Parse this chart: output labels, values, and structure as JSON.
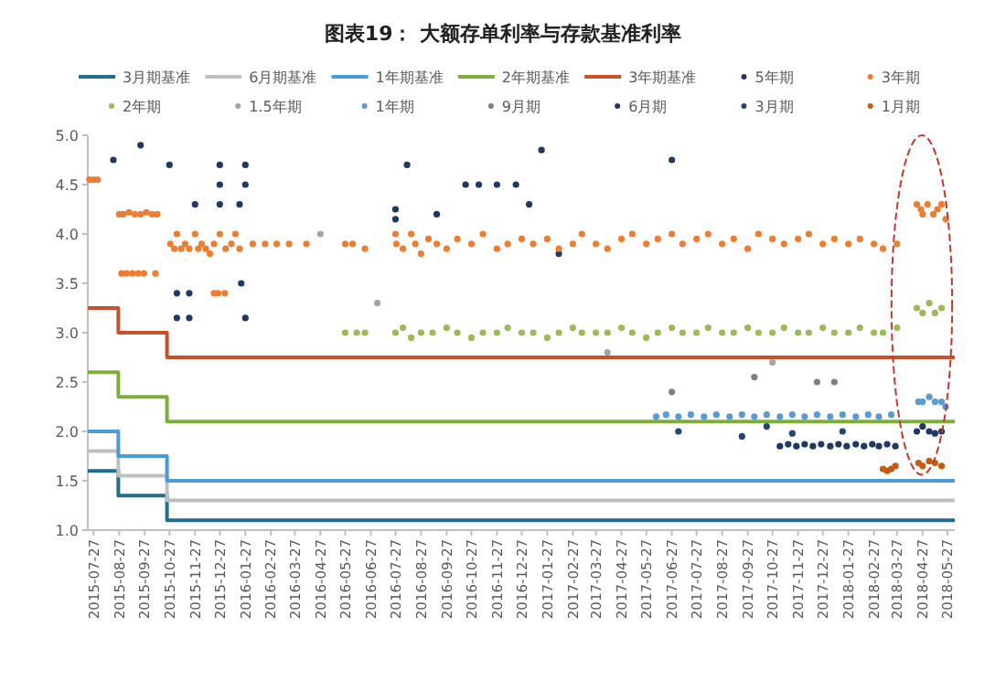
{
  "chart_data": {
    "type": "scatter",
    "title": "图表19：  大额存单利率与存款基准利率",
    "legend": "top",
    "marker": "circle",
    "xlim": [
      "2015-07-20",
      "2018-06-05"
    ],
    "xticks": [
      "2015-07-27",
      "2015-08-27",
      "2015-09-27",
      "2015-10-27",
      "2015-11-27",
      "2015-12-27",
      "2016-01-27",
      "2016-02-27",
      "2016-03-27",
      "2016-04-27",
      "2016-05-27",
      "2016-06-27",
      "2016-07-27",
      "2016-08-27",
      "2016-09-27",
      "2016-10-27",
      "2016-11-27",
      "2016-12-27",
      "2017-01-27",
      "2017-02-27",
      "2017-03-27",
      "2017-04-27",
      "2017-05-27",
      "2017-06-27",
      "2017-07-27",
      "2017-08-27",
      "2017-09-27",
      "2017-10-27",
      "2017-11-27",
      "2017-12-27",
      "2018-01-27",
      "2018-02-27",
      "2018-03-27",
      "2018-04-27",
      "2018-05-27"
    ],
    "ylim": [
      1,
      5
    ],
    "yticks": [
      {
        "value": 1,
        "label": "1.0"
      },
      {
        "value": 1.5,
        "label": "1.5"
      },
      {
        "value": 2,
        "label": "2.0"
      },
      {
        "value": 2.5,
        "label": "2.5"
      },
      {
        "value": 3,
        "label": "3.0"
      },
      {
        "value": 3.5,
        "label": "3.5"
      },
      {
        "value": 4,
        "label": "4.0"
      },
      {
        "value": 4.5,
        "label": "4.5"
      },
      {
        "value": 5,
        "label": "5.0"
      }
    ],
    "series": [
      {
        "name": "3月期基准",
        "type": "step",
        "marker": "none",
        "color": "#1f6e8c",
        "x": [
          "2015-07-20",
          "2015-08-26",
          "2015-10-24",
          "2018-06-05"
        ],
        "values": [
          1.6,
          1.35,
          1.1,
          1.1
        ]
      },
      {
        "name": "6月期基准",
        "type": "step",
        "marker": "none",
        "color": "#bfbfbf",
        "x": [
          "2015-07-20",
          "2015-08-26",
          "2015-10-24",
          "2018-06-05"
        ],
        "values": [
          1.8,
          1.55,
          1.3,
          1.3
        ]
      },
      {
        "name": "1年期基准",
        "type": "step",
        "marker": "none",
        "color": "#4a9bd6",
        "x": [
          "2015-07-20",
          "2015-08-26",
          "2015-10-24",
          "2018-06-05"
        ],
        "values": [
          2,
          1.75,
          1.5,
          1.5
        ]
      },
      {
        "name": "2年期基准",
        "type": "step",
        "marker": "none",
        "color": "#7fad3a",
        "x": [
          "2015-07-20",
          "2015-08-26",
          "2015-10-24",
          "2018-06-05"
        ],
        "values": [
          2.6,
          2.35,
          2.1,
          2.1
        ]
      },
      {
        "name": "3年期基准",
        "type": "step",
        "marker": "none",
        "color": "#c8502a",
        "x": [
          "2015-07-20",
          "2015-08-26",
          "2015-10-24",
          "2018-06-05"
        ],
        "values": [
          3.25,
          3,
          2.75,
          2.75
        ]
      },
      {
        "name": "5年期",
        "color": "#1f3864",
        "x": [
          "2015-08-20",
          "2015-09-22",
          "2015-10-27",
          "2015-12-27",
          "2016-01-27",
          "2015-12-27",
          "2016-01-27",
          "2015-11-27",
          "2015-12-27",
          "2016-01-20",
          "2015-11-05",
          "2015-11-20",
          "2015-11-05",
          "2015-11-20",
          "2016-01-27",
          "2016-01-22",
          "2016-07-27",
          "2016-07-27",
          "2016-08-10",
          "2016-09-15",
          "2016-10-20",
          "2016-11-05",
          "2016-11-27",
          "2016-12-20",
          "2017-01-05",
          "2017-01-20",
          "2017-06-27",
          "2017-02-10"
        ],
        "values": [
          4.75,
          4.9,
          4.7,
          4.7,
          4.7,
          4.5,
          4.5,
          4.3,
          4.3,
          4.3,
          3.4,
          3.4,
          3.15,
          3.15,
          3.15,
          3.5,
          4.25,
          4.15,
          4.7,
          4.2,
          4.5,
          4.5,
          4.5,
          4.5,
          4.3,
          4.85,
          4.75,
          3.8
        ]
      },
      {
        "name": "3年期",
        "color": "#ed7d31",
        "x": [
          "2015-07-22",
          "2015-07-27",
          "2015-08-01",
          "2015-08-27",
          "2015-09-01",
          "2015-09-08",
          "2015-09-15",
          "2015-09-22",
          "2015-09-29",
          "2015-10-06",
          "2015-10-12",
          "2015-08-30",
          "2015-09-05",
          "2015-09-12",
          "2015-09-19",
          "2015-09-26",
          "2015-10-10",
          "2015-10-28",
          "2015-11-02",
          "2015-11-05",
          "2015-11-10",
          "2015-11-15",
          "2015-11-20",
          "2015-11-27",
          "2015-12-01",
          "2015-12-05",
          "2015-12-10",
          "2015-12-15",
          "2015-12-20",
          "2015-12-27",
          "2016-01-03",
          "2016-01-10",
          "2016-01-15",
          "2016-01-20",
          "2015-12-20",
          "2015-12-25",
          "2016-01-02",
          "2016-02-05",
          "2016-02-20",
          "2016-03-05",
          "2016-03-20",
          "2016-04-10",
          "2016-05-27",
          "2016-06-05",
          "2016-06-20",
          "2016-07-27",
          "2016-07-28",
          "2016-08-05",
          "2016-08-15",
          "2016-08-20",
          "2016-08-27",
          "2016-09-05",
          "2016-09-15",
          "2016-09-27",
          "2016-10-10",
          "2016-10-27",
          "2016-11-10",
          "2016-11-27",
          "2016-12-10",
          "2016-12-27",
          "2017-01-10",
          "2017-01-27",
          "2017-02-10",
          "2017-02-27",
          "2017-03-10",
          "2017-03-27",
          "2017-04-10",
          "2017-04-27",
          "2017-05-10",
          "2017-05-27",
          "2017-06-10",
          "2017-06-27",
          "2017-07-10",
          "2017-07-27",
          "2017-08-10",
          "2017-08-27",
          "2017-09-10",
          "2017-09-27",
          "2017-10-10",
          "2017-10-27",
          "2017-11-10",
          "2017-11-27",
          "2017-12-10",
          "2017-12-27",
          "2018-01-10",
          "2018-01-27",
          "2018-02-10",
          "2018-02-27",
          "2018-03-10",
          "2018-03-27",
          "2018-04-20",
          "2018-04-25",
          "2018-04-27",
          "2018-05-03",
          "2018-05-10",
          "2018-05-15",
          "2018-05-20",
          "2018-05-25"
        ],
        "values": [
          4.55,
          4.55,
          4.55,
          4.2,
          4.2,
          4.22,
          4.2,
          4.2,
          4.22,
          4.2,
          4.2,
          3.6,
          3.6,
          3.6,
          3.6,
          3.6,
          3.6,
          3.9,
          3.85,
          4,
          3.85,
          3.9,
          3.85,
          4,
          3.85,
          3.9,
          3.85,
          3.8,
          3.9,
          4,
          3.85,
          3.9,
          4,
          3.85,
          3.4,
          3.4,
          3.4,
          3.9,
          3.9,
          3.9,
          3.9,
          3.9,
          3.9,
          3.9,
          3.85,
          4,
          3.9,
          3.85,
          4,
          3.9,
          3.8,
          3.95,
          3.9,
          3.85,
          3.95,
          3.9,
          4,
          3.85,
          3.9,
          3.95,
          3.9,
          3.95,
          3.85,
          3.9,
          4,
          3.9,
          3.85,
          3.95,
          4,
          3.9,
          3.95,
          4,
          3.9,
          3.95,
          4,
          3.9,
          3.95,
          3.85,
          4,
          3.95,
          3.9,
          3.95,
          4,
          3.9,
          3.95,
          3.9,
          3.95,
          3.9,
          3.85,
          3.9,
          4.3,
          4.25,
          4.2,
          4.3,
          4.2,
          4.25,
          4.3,
          4.15
        ]
      },
      {
        "name": "2年期",
        "color": "#9bbb59",
        "x": [
          "2016-05-27",
          "2016-06-10",
          "2016-06-20",
          "2016-07-27",
          "2016-08-05",
          "2016-08-15",
          "2016-08-27",
          "2016-09-10",
          "2016-09-27",
          "2016-10-10",
          "2016-10-27",
          "2016-11-10",
          "2016-11-27",
          "2016-12-10",
          "2016-12-27",
          "2017-01-10",
          "2017-01-27",
          "2017-02-10",
          "2017-02-27",
          "2017-03-10",
          "2017-03-27",
          "2017-04-10",
          "2017-04-27",
          "2017-05-10",
          "2017-05-27",
          "2017-06-10",
          "2017-06-27",
          "2017-07-10",
          "2017-07-27",
          "2017-08-10",
          "2017-08-27",
          "2017-09-10",
          "2017-09-27",
          "2017-10-10",
          "2017-10-27",
          "2017-11-10",
          "2017-11-27",
          "2017-12-10",
          "2017-12-27",
          "2018-01-10",
          "2018-01-27",
          "2018-02-10",
          "2018-02-27",
          "2018-03-10",
          "2018-03-27",
          "2018-04-20",
          "2018-04-27",
          "2018-05-05",
          "2018-05-12",
          "2018-05-20"
        ],
        "values": [
          3,
          3,
          3,
          3,
          3.05,
          2.95,
          3,
          3,
          3.05,
          3,
          2.95,
          3,
          3,
          3.05,
          3,
          3,
          2.95,
          3,
          3.05,
          3,
          3,
          3,
          3.05,
          3,
          2.95,
          3,
          3.05,
          3,
          3,
          3.05,
          3,
          3,
          3.05,
          3,
          3,
          3.05,
          3,
          3,
          3.05,
          3,
          3,
          3.05,
          3,
          3,
          3.05,
          3.25,
          3.2,
          3.3,
          3.2,
          3.25
        ]
      },
      {
        "name": "1.5年期",
        "color": "#a5a5a5",
        "x": [
          "2016-04-27",
          "2016-07-05",
          "2017-04-10",
          "2017-10-27"
        ],
        "values": [
          4,
          3.3,
          2.8,
          2.7
        ]
      },
      {
        "name": "1年期",
        "color": "#5b9bd5",
        "x": [
          "2017-06-08",
          "2017-06-20",
          "2017-07-05",
          "2017-07-20",
          "2017-08-05",
          "2017-08-20",
          "2017-09-05",
          "2017-09-20",
          "2017-10-05",
          "2017-10-20",
          "2017-11-05",
          "2017-11-20",
          "2017-12-05",
          "2017-12-20",
          "2018-01-05",
          "2018-01-20",
          "2018-02-05",
          "2018-02-20",
          "2018-03-05",
          "2018-03-20",
          "2018-04-22",
          "2018-04-27",
          "2018-05-05",
          "2018-05-12",
          "2018-05-20",
          "2018-05-25"
        ],
        "values": [
          2.15,
          2.17,
          2.15,
          2.17,
          2.15,
          2.17,
          2.15,
          2.17,
          2.15,
          2.17,
          2.15,
          2.17,
          2.15,
          2.17,
          2.15,
          2.17,
          2.15,
          2.17,
          2.15,
          2.17,
          2.3,
          2.3,
          2.35,
          2.3,
          2.3,
          2.25
        ]
      },
      {
        "name": "9月期",
        "color": "#7f7f7f",
        "x": [
          "2017-06-27",
          "2017-10-05",
          "2017-12-20",
          "2018-01-10"
        ],
        "values": [
          2.4,
          2.55,
          2.5,
          2.5
        ]
      },
      {
        "name": "6月期",
        "color": "#203864",
        "x": [
          "2017-11-05",
          "2017-11-15",
          "2017-11-25",
          "2017-12-05",
          "2017-12-15",
          "2017-12-25",
          "2018-01-05",
          "2018-01-15",
          "2018-01-25",
          "2018-02-05",
          "2018-02-15",
          "2018-02-25",
          "2018-03-05",
          "2018-03-15",
          "2018-03-25",
          "2018-04-20",
          "2018-04-27",
          "2018-05-05",
          "2018-05-12",
          "2018-05-20"
        ],
        "values": [
          1.85,
          1.87,
          1.85,
          1.87,
          1.85,
          1.87,
          1.85,
          1.87,
          1.85,
          1.87,
          1.85,
          1.87,
          1.85,
          1.87,
          1.85,
          2,
          2.05,
          2,
          1.98,
          2
        ]
      },
      {
        "name": "3月期",
        "color": "#264478",
        "x": [
          "2017-07-05",
          "2017-09-20",
          "2017-10-20",
          "2017-11-20",
          "2018-01-20"
        ],
        "values": [
          2,
          1.95,
          2.05,
          1.98,
          2
        ]
      },
      {
        "name": "1月期",
        "color": "#c55a11",
        "x": [
          "2018-03-10",
          "2018-03-15",
          "2018-03-20",
          "2018-03-25",
          "2018-04-22",
          "2018-04-27",
          "2018-05-05",
          "2018-05-12",
          "2018-05-20"
        ],
        "values": [
          1.62,
          1.6,
          1.62,
          1.65,
          1.68,
          1.65,
          1.7,
          1.68,
          1.65
        ]
      }
    ]
  }
}
